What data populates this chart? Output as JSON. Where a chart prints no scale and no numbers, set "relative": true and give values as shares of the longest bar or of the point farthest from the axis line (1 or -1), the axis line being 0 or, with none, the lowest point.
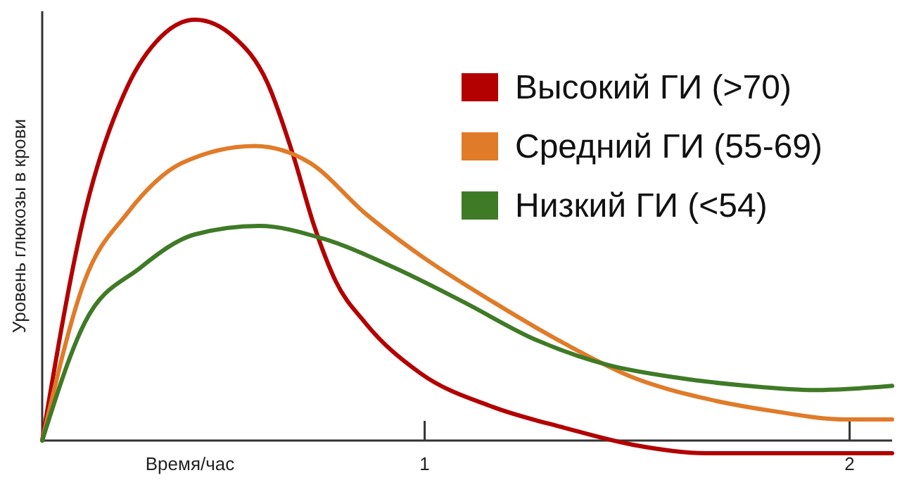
{
  "chart_data": {
    "type": "line",
    "relative": true,
    "xlabel": "Время/час",
    "ylabel": "Уровень глюкозы в крови",
    "xlim": [
      0.1,
      2.1
    ],
    "xticks": [
      1,
      2
    ],
    "legend": "top right",
    "grid": false,
    "marker": "none",
    "line_style": "solid",
    "series": [
      {
        "name": "Высокий ГИ (>70)",
        "color": "#b30000",
        "x": [
          0.1,
          0.2,
          0.3,
          0.38,
          0.46,
          0.55,
          0.63,
          0.69,
          0.74,
          0.79,
          0.86,
          0.99,
          1.16,
          1.33,
          1.49,
          1.66,
          2.1
        ],
        "values": [
          0,
          0.54,
          0.84,
          0.96,
          1,
          0.96,
          0.85,
          0.68,
          0.51,
          0.38,
          0.28,
          0.16,
          0.08,
          0.03,
          -0.01,
          -0.03,
          -0.03
        ]
      },
      {
        "name": "Средний ГИ (55-69)",
        "color": "#e07b29",
        "x": [
          0.1,
          0.2,
          0.3,
          0.43,
          0.6,
          0.73,
          0.86,
          0.99,
          1.16,
          1.33,
          1.49,
          1.66,
          1.82,
          1.99,
          2.1
        ],
        "values": [
          0,
          0.38,
          0.54,
          0.66,
          0.7,
          0.66,
          0.54,
          0.44,
          0.33,
          0.23,
          0.15,
          0.1,
          0.07,
          0.05,
          0.05
        ]
      },
      {
        "name": "Низкий ГИ (<54)",
        "color": "#3f7a26",
        "x": [
          0.1,
          0.2,
          0.33,
          0.46,
          0.61,
          0.76,
          0.93,
          1.09,
          1.26,
          1.43,
          1.59,
          1.76,
          1.92,
          2.1
        ],
        "values": [
          0,
          0.28,
          0.41,
          0.49,
          0.51,
          0.48,
          0.41,
          0.33,
          0.24,
          0.18,
          0.15,
          0.13,
          0.12,
          0.13
        ]
      }
    ]
  }
}
